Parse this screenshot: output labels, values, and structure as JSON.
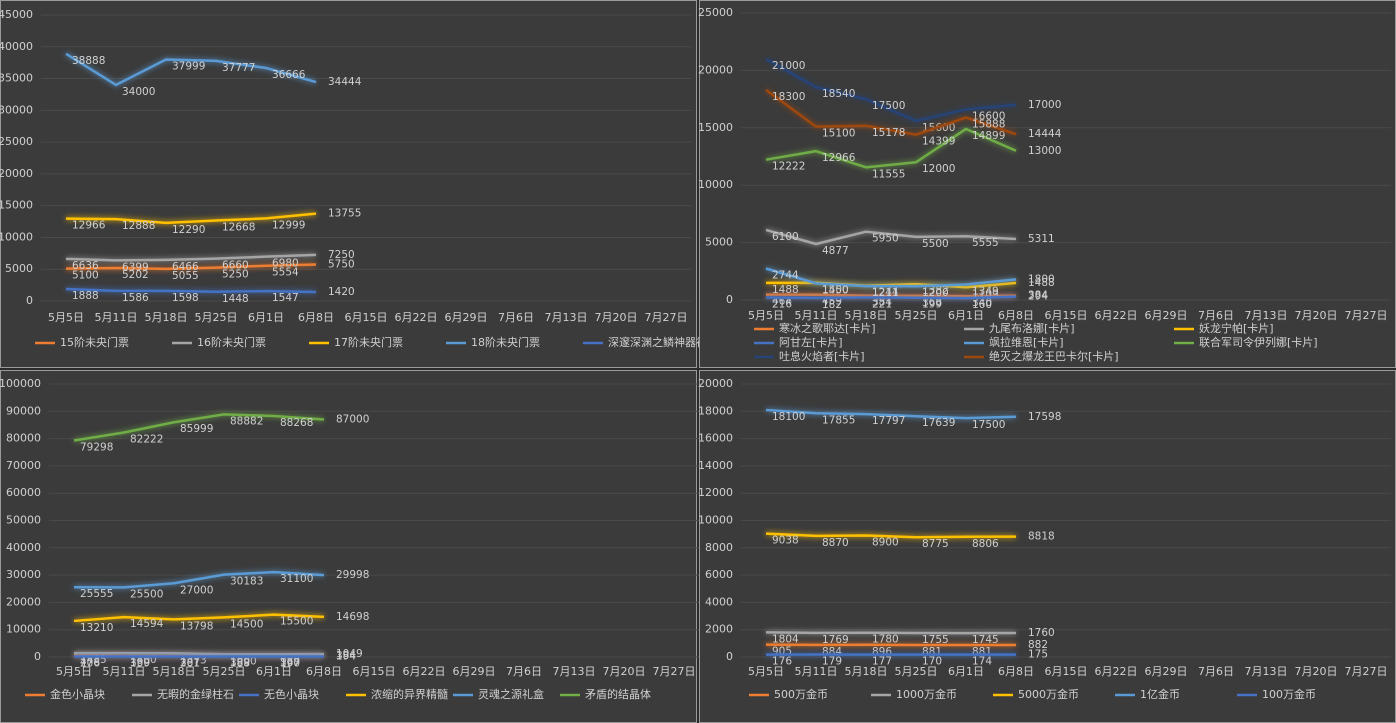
{
  "chart_data": [
    {
      "type": "line",
      "categories": [
        "5月5日",
        "5月11日",
        "5月18日",
        "5月25日",
        "6月1日",
        "6月8日",
        "6月15日",
        "6月22日",
        "6月29日",
        "7月6日",
        "7月13日",
        "7月20日",
        "7月27日"
      ],
      "ylim": [
        0,
        45000
      ],
      "yticks": [
        0,
        5000,
        10000,
        15000,
        20000,
        25000,
        30000,
        35000,
        40000,
        45000
      ],
      "series": [
        {
          "name": "15阶未央门票",
          "color": "#ed7d31",
          "values": [
            5100,
            5202,
            5055,
            5250,
            5554,
            5750,
            null,
            null,
            null,
            null,
            null,
            null,
            null
          ]
        },
        {
          "name": "16阶未央门票",
          "color": "#a5a5a5",
          "values": [
            6636,
            6399,
            6466,
            6660,
            6980,
            7250,
            null,
            null,
            null,
            null,
            null,
            null,
            null
          ]
        },
        {
          "name": "17阶未央门票",
          "color": "#ffc000",
          "values": [
            12966,
            12888,
            12290,
            12668,
            12999,
            13755,
            null,
            null,
            null,
            null,
            null,
            null,
            null
          ]
        },
        {
          "name": "18阶未央门票",
          "color": "#5b9bd5",
          "values": [
            38888,
            34000,
            37999,
            37777,
            36666,
            34444,
            null,
            null,
            null,
            null,
            null,
            null,
            null
          ]
        },
        {
          "name": "深邃深渊之鳞神器袖珍罐",
          "color": "#4472c4",
          "values": [
            1888,
            1586,
            1598,
            1448,
            1547,
            1420,
            null,
            null,
            null,
            null,
            null,
            null,
            null
          ]
        }
      ]
    },
    {
      "type": "line",
      "categories": [
        "5月5日",
        "5月11日",
        "5月18日",
        "5月25日",
        "6月1日",
        "6月8日",
        "6月15日",
        "6月22日",
        "6月29日",
        "7月6日",
        "7月13日",
        "7月20日",
        "7月27日"
      ],
      "ylim": [
        0,
        25000
      ],
      "yticks": [
        0,
        5000,
        10000,
        15000,
        20000,
        25000
      ],
      "series": [
        {
          "name": "寒冰之歌耶达[卡片]",
          "color": "#ed7d31",
          "values": [
            464,
            459,
            384,
            368,
            340,
            384,
            null,
            null,
            null,
            null,
            null,
            null,
            null
          ]
        },
        {
          "name": "九尾布洛娜[卡片]",
          "color": "#a5a5a5",
          "values": [
            6100,
            4877,
            5950,
            5500,
            5555,
            5311,
            null,
            null,
            null,
            null,
            null,
            null,
            null
          ]
        },
        {
          "name": "妖龙宁帕[卡片]",
          "color": "#ffc000",
          "values": [
            1488,
            1500,
            1244,
            1382,
            1109,
            1488,
            null,
            null,
            null,
            null,
            null,
            null,
            null
          ]
        },
        {
          "name": "阿甘左[卡片]",
          "color": "#4472c4",
          "values": [
            216,
            182,
            221,
            199,
            160,
            294,
            null,
            null,
            null,
            null,
            null,
            null,
            null
          ]
        },
        {
          "name": "飒拉维恩[卡片]",
          "color": "#5b9bd5",
          "values": [
            2744,
            1450,
            1211,
            1200,
            1349,
            1800,
            null,
            null,
            null,
            null,
            null,
            null,
            null
          ]
        },
        {
          "name": "联合军司令伊列娜[卡片]",
          "color": "#70ad47",
          "values": [
            12222,
            12966,
            11555,
            12000,
            14899,
            13000,
            null,
            null,
            null,
            null,
            null,
            null,
            null
          ]
        },
        {
          "name": "吐息火焰者[卡片]",
          "color": "#264478",
          "values": [
            21000,
            18540,
            17500,
            15600,
            16600,
            17000,
            null,
            null,
            null,
            null,
            null,
            null,
            null
          ]
        },
        {
          "name": "绝灭之爆龙王巴卡尔[卡片]",
          "color": "#9e480e",
          "values": [
            18300,
            15100,
            15178,
            14399,
            15888,
            14444,
            null,
            null,
            null,
            null,
            null,
            null,
            null
          ]
        }
      ]
    },
    {
      "type": "line",
      "categories": [
        "5月5日",
        "5月11日",
        "5月18日",
        "5月25日",
        "6月1日",
        "6月8日",
        "6月15日",
        "6月22日",
        "6月29日",
        "7月6日",
        "7月13日",
        "7月20日",
        "7月27日"
      ],
      "ylim": [
        0,
        100000
      ],
      "yticks": [
        0,
        10000,
        20000,
        30000,
        40000,
        50000,
        60000,
        70000,
        80000,
        90000,
        100000
      ],
      "series": [
        {
          "name": "金色小晶块",
          "color": "#ed7d31",
          "values": [
            478,
            380,
            387,
            389,
            367,
            384,
            null,
            null,
            null,
            null,
            null,
            null,
            null
          ]
        },
        {
          "name": "无暇的金绿柱石",
          "color": "#a5a5a5",
          "values": [
            1435,
            1400,
            1373,
            1000,
            989,
            1049,
            null,
            null,
            null,
            null,
            null,
            null,
            null
          ]
        },
        {
          "name": "无色小晶块",
          "color": "#4472c4",
          "values": [
            206,
            199,
            201,
            188,
            190,
            194,
            null,
            null,
            null,
            null,
            null,
            null,
            null
          ]
        },
        {
          "name": "浓缩的异界精髓",
          "color": "#ffc000",
          "values": [
            13210,
            14594,
            13798,
            14500,
            15500,
            14698,
            null,
            null,
            null,
            null,
            null,
            null,
            null
          ]
        },
        {
          "name": "灵魂之源礼盒",
          "color": "#5b9bd5",
          "values": [
            25555,
            25500,
            27000,
            30183,
            31100,
            29998,
            null,
            null,
            null,
            null,
            null,
            null,
            null
          ]
        },
        {
          "name": "矛盾的结晶体",
          "color": "#70ad47",
          "values": [
            79298,
            82222,
            85999,
            88882,
            88268,
            87000,
            null,
            null,
            null,
            null,
            null,
            null,
            null
          ]
        }
      ]
    },
    {
      "type": "line",
      "categories": [
        "5月5日",
        "5月11日",
        "5月18日",
        "5月25日",
        "6月1日",
        "6月8日",
        "6月15日",
        "6月22日",
        "6月29日",
        "7月6日",
        "7月13日",
        "7月20日",
        "7月27日"
      ],
      "ylim": [
        0,
        20000
      ],
      "yticks": [
        0,
        2000,
        4000,
        6000,
        8000,
        10000,
        12000,
        14000,
        16000,
        18000,
        20000
      ],
      "series": [
        {
          "name": "500万金币",
          "color": "#ed7d31",
          "values": [
            905,
            884,
            896,
            881,
            881,
            882,
            null,
            null,
            null,
            null,
            null,
            null,
            null
          ]
        },
        {
          "name": "1000万金币",
          "color": "#a5a5a5",
          "values": [
            1804,
            1769,
            1780,
            1755,
            1745,
            1760,
            null,
            null,
            null,
            null,
            null,
            null,
            null
          ]
        },
        {
          "name": "5000万金币",
          "color": "#ffc000",
          "values": [
            9038,
            8870,
            8900,
            8775,
            8806,
            8818,
            null,
            null,
            null,
            null,
            null,
            null,
            null
          ]
        },
        {
          "name": "1亿金币",
          "color": "#5b9bd5",
          "values": [
            18100,
            17855,
            17797,
            17639,
            17500,
            17598,
            null,
            null,
            null,
            null,
            null,
            null,
            null
          ]
        },
        {
          "name": "100万金币",
          "color": "#4472c4",
          "values": [
            176,
            179,
            177,
            170,
            174,
            175,
            null,
            null,
            null,
            null,
            null,
            null,
            null
          ]
        }
      ]
    }
  ]
}
